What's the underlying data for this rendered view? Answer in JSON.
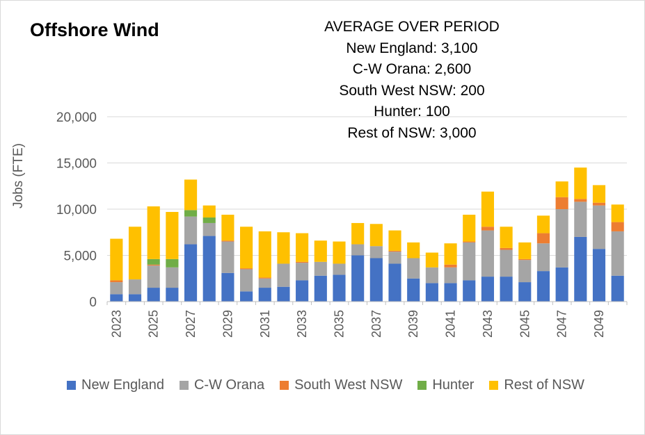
{
  "title": "Offshore Wind",
  "annotation": {
    "heading": "AVERAGE OVER PERIOD",
    "lines": [
      "New England: 3,100",
      "C-W Orana: 2,600",
      "South West NSW: 200",
      "Hunter: 100",
      "Rest of NSW: 3,000"
    ]
  },
  "chart_data": {
    "type": "bar",
    "stacked": true,
    "title": "Offshore Wind",
    "xlabel": "",
    "ylabel": "Jobs (FTE)",
    "ylim": [
      0,
      20000
    ],
    "yticks": [
      0,
      5000,
      10000,
      15000,
      20000
    ],
    "ytick_labels": [
      "0",
      "5,000",
      "10,000",
      "15,000",
      "20,000"
    ],
    "grid": true,
    "legend_position": "bottom",
    "categories": [
      2023,
      2024,
      2025,
      2026,
      2027,
      2028,
      2029,
      2030,
      2031,
      2032,
      2033,
      2034,
      2035,
      2036,
      2037,
      2038,
      2039,
      2040,
      2041,
      2042,
      2043,
      2044,
      2045,
      2046,
      2047,
      2048,
      2049,
      2050
    ],
    "xtick_labels": [
      "2023",
      "",
      "2025",
      "",
      "2027",
      "",
      "2029",
      "",
      "2031",
      "",
      "2033",
      "",
      "2035",
      "",
      "2037",
      "",
      "2039",
      "",
      "2041",
      "",
      "2043",
      "",
      "2045",
      "",
      "2047",
      "",
      "2049",
      ""
    ],
    "series": [
      {
        "name": "New England",
        "color": "#4472C4",
        "values": [
          800,
          800,
          1500,
          1500,
          6200,
          7100,
          3100,
          1100,
          1500,
          1600,
          2300,
          2800,
          2900,
          5000,
          4700,
          4100,
          2500,
          2000,
          2000,
          2300,
          2700,
          2700,
          2100,
          3300,
          3700,
          7000,
          5700,
          2800
        ]
      },
      {
        "name": "C-W Orana",
        "color": "#A5A5A5",
        "values": [
          1300,
          1600,
          2400,
          2200,
          3000,
          1400,
          3400,
          2400,
          1000,
          2500,
          1900,
          1500,
          1200,
          1200,
          1300,
          1300,
          2200,
          1700,
          1700,
          4100,
          5000,
          2900,
          2400,
          3000,
          6300,
          3800,
          4700,
          4800
        ]
      },
      {
        "name": "South West NSW",
        "color": "#ED7D31",
        "values": [
          200,
          0,
          100,
          0,
          0,
          0,
          100,
          100,
          100,
          0,
          100,
          0,
          0,
          0,
          0,
          100,
          0,
          0,
          300,
          100,
          400,
          200,
          100,
          1100,
          1300,
          300,
          300,
          1000
        ]
      },
      {
        "name": "Hunter",
        "color": "#70AD47",
        "values": [
          0,
          0,
          600,
          900,
          700,
          600,
          0,
          0,
          0,
          0,
          0,
          0,
          0,
          0,
          0,
          0,
          0,
          0,
          0,
          0,
          0,
          0,
          0,
          0,
          0,
          0,
          0,
          0
        ]
      },
      {
        "name": "Rest of NSW",
        "color": "#FFC000",
        "values": [
          4500,
          5700,
          5700,
          5100,
          3300,
          1300,
          2800,
          4500,
          5000,
          3400,
          3100,
          2300,
          2400,
          2300,
          2400,
          2200,
          1700,
          1600,
          2300,
          2900,
          3800,
          2300,
          1800,
          1900,
          1700,
          3400,
          1900,
          1900
        ]
      }
    ]
  }
}
